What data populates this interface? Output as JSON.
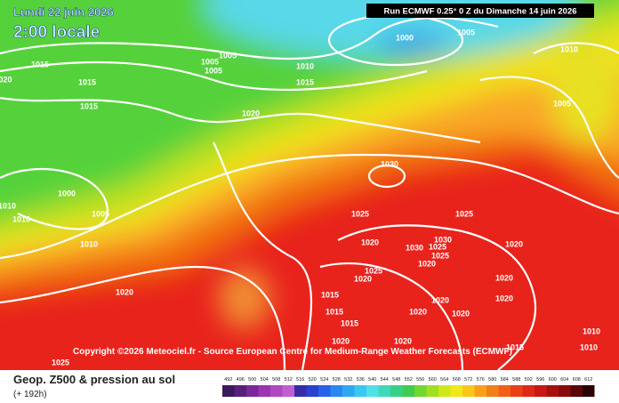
{
  "header": {
    "date": "Lundi 22 juin 2026",
    "time": "2:00 locale",
    "run": "Run ECMWF 0.25° 0 Z du Dimanche 14 juin 2026"
  },
  "map": {
    "isobar_labels": [
      "1015",
      "1015",
      "1015",
      "1005",
      "1005",
      "1005",
      "1010",
      "1015",
      "1000",
      "1005",
      "1010",
      "1005",
      "1020",
      "1030",
      "1000",
      "1010",
      "1010",
      "1005",
      "1010",
      "1025",
      "1025",
      "1020",
      "1030",
      "1030",
      "1025",
      "1020",
      "1025",
      "1020",
      "1025",
      "1020",
      "1020",
      "1015",
      "1020",
      "1020",
      "1020",
      "1015",
      "1020",
      "1020",
      "1015",
      "1020",
      "1020",
      "1015",
      "1010",
      "1010",
      "1025",
      "020"
    ],
    "copyright": "Copyright ©2026 Meteociel.fr - Source European Centre for Medium-Range Weather Forecasts (ECMWF)"
  },
  "legend": {
    "title": "Geop. Z500 & pression au sol",
    "lead": "(+ 192h)",
    "ticks": [
      492,
      496,
      500,
      504,
      508,
      512,
      516,
      520,
      524,
      528,
      532,
      536,
      540,
      544,
      548,
      552,
      556,
      560,
      564,
      568,
      572,
      576,
      580,
      584,
      588,
      592,
      596,
      600,
      604,
      608,
      612
    ],
    "colors": [
      "#3a1a5a",
      "#5a1f7a",
      "#7a2898",
      "#9a35b0",
      "#b048c0",
      "#c060d0",
      "#3a2aa8",
      "#2a40d0",
      "#2a60e8",
      "#2a88f0",
      "#30a8f0",
      "#38c8f0",
      "#50e0e8",
      "#40d8b8",
      "#38d088",
      "#40cc50",
      "#70d830",
      "#a0e020",
      "#d0e818",
      "#f0e818",
      "#f8c818",
      "#f8a018",
      "#f08018",
      "#f06018",
      "#e84018",
      "#e02818",
      "#c81818",
      "#a81010",
      "#880c0c",
      "#580808",
      "#280404"
    ]
  }
}
